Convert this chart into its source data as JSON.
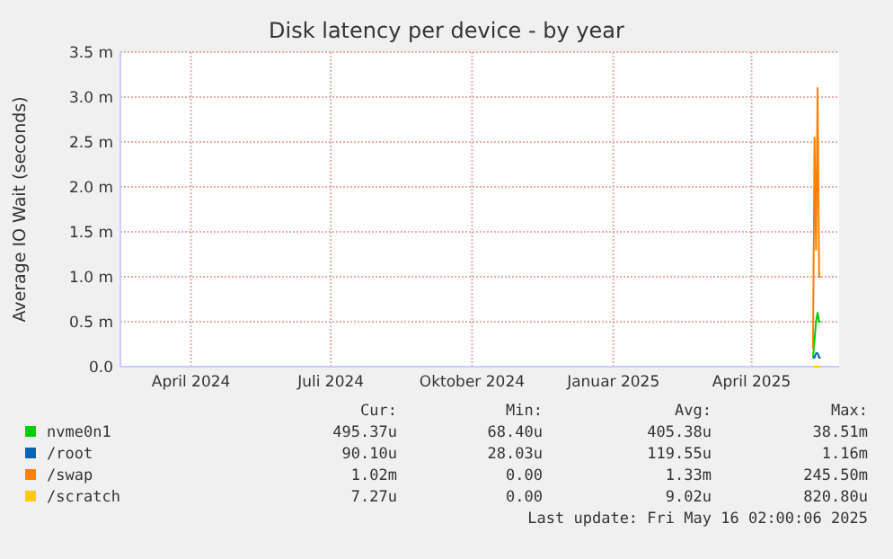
{
  "chart_data": {
    "type": "line",
    "title": "Disk latency per device - by year",
    "ylabel": "Average IO Wait (seconds)",
    "xlim": [
      "2024-02-15",
      "2025-05-28"
    ],
    "xticks": [
      {
        "value": "2024-04-01",
        "label": "April 2024"
      },
      {
        "value": "2024-07-01",
        "label": "Juli 2024"
      },
      {
        "value": "2024-10-01",
        "label": "Oktober 2024"
      },
      {
        "value": "2025-01-01",
        "label": "Januar 2025"
      },
      {
        "value": "2025-04-01",
        "label": "April 2025"
      }
    ],
    "ylim": [
      0,
      3.5
    ],
    "yticks": [
      {
        "value": 0,
        "label": "0.0"
      },
      {
        "value": 0.5,
        "label": "0.5 m"
      },
      {
        "value": 1,
        "label": "1.0 m"
      },
      {
        "value": 1.5,
        "label": "1.5 m"
      },
      {
        "value": 2,
        "label": "2.0 m"
      },
      {
        "value": 2.5,
        "label": "2.5 m"
      },
      {
        "value": 3,
        "label": "3.0 m"
      },
      {
        "value": 3.5,
        "label": "3.5 m"
      }
    ],
    "grid": true,
    "legend": "bottom",
    "marker": "none",
    "line_style": "solid",
    "x": [
      "2025-05-11",
      "2025-05-12",
      "2025-05-13",
      "2025-05-14",
      "2025-05-15",
      "2025-05-16"
    ],
    "series": [
      {
        "name": "nvme0n1",
        "color": "#00cc00",
        "values": [
          0.1,
          0.3,
          0.5,
          0.6,
          0.5,
          0.5
        ]
      },
      {
        "name": "/root",
        "color": "#0066b3",
        "values": [
          0.1,
          0.1,
          0.15,
          0.15,
          0.1,
          0.1
        ]
      },
      {
        "name": "/swap",
        "color": "#ff8000",
        "values": [
          0.2,
          2.55,
          1.3,
          3.1,
          1.0,
          1.0
        ]
      },
      {
        "name": "/scratch",
        "color": "#ffcc00",
        "values": [
          0,
          0,
          0,
          0,
          0,
          0
        ]
      }
    ],
    "annotations": [
      "Cur:",
      "Min:",
      "Avg:",
      "Max:",
      "495.37u",
      "68.40u",
      "405.38u",
      "38.51m",
      "90.10u",
      "28.03u",
      "119.55u",
      "1.16m",
      "1.02m",
      "0.00",
      "1.33m",
      "245.50m",
      "7.27u",
      "0.00",
      "9.02u",
      "820.80u",
      "Last update: Fri May 16 02:00:06 2025"
    ]
  }
}
